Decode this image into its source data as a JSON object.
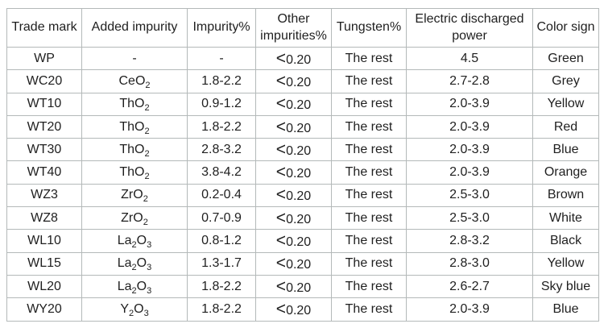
{
  "page": {
    "background_color": "#ffffff"
  },
  "table": {
    "border_color": "#b4b9b9",
    "text_color": "#1f1f1f",
    "headers": [
      "Trade mark",
      "Added impurity",
      "Impurity%",
      "Other impurities%",
      "Tungsten%",
      "Electric discharged power",
      "Color sign"
    ],
    "rows": [
      {
        "trade_mark": "WP",
        "added_impurity": "-",
        "impurity_pct": "-",
        "other_impurities_pct": "<0.20",
        "tungsten_pct": "The rest",
        "electric_discharged_power": "4.5",
        "color_sign": "Green"
      },
      {
        "trade_mark": "WC20",
        "added_impurity": "CeO2",
        "impurity_pct": "1.8-2.2",
        "other_impurities_pct": "<0.20",
        "tungsten_pct": "The rest",
        "electric_discharged_power": "2.7-2.8",
        "color_sign": "Grey"
      },
      {
        "trade_mark": "WT10",
        "added_impurity": "ThO2",
        "impurity_pct": "0.9-1.2",
        "other_impurities_pct": "<0.20",
        "tungsten_pct": "The rest",
        "electric_discharged_power": "2.0-3.9",
        "color_sign": "Yellow"
      },
      {
        "trade_mark": "WT20",
        "added_impurity": "ThO2",
        "impurity_pct": "1.8-2.2",
        "other_impurities_pct": "<0.20",
        "tungsten_pct": "The rest",
        "electric_discharged_power": "2.0-3.9",
        "color_sign": "Red"
      },
      {
        "trade_mark": "WT30",
        "added_impurity": "ThO2",
        "impurity_pct": "2.8-3.2",
        "other_impurities_pct": "<0.20",
        "tungsten_pct": "The rest",
        "electric_discharged_power": "2.0-3.9",
        "color_sign": "Blue"
      },
      {
        "trade_mark": "WT40",
        "added_impurity": "ThO2",
        "impurity_pct": "3.8-4.2",
        "other_impurities_pct": "<0.20",
        "tungsten_pct": "The rest",
        "electric_discharged_power": "2.0-3.9",
        "color_sign": "Orange"
      },
      {
        "trade_mark": "WZ3",
        "added_impurity": "ZrO2",
        "impurity_pct": "0.2-0.4",
        "other_impurities_pct": "<0.20",
        "tungsten_pct": "The rest",
        "electric_discharged_power": "2.5-3.0",
        "color_sign": "Brown"
      },
      {
        "trade_mark": "WZ8",
        "added_impurity": "ZrO2",
        "impurity_pct": "0.7-0.9",
        "other_impurities_pct": "<0.20",
        "tungsten_pct": "The rest",
        "electric_discharged_power": "2.5-3.0",
        "color_sign": "White"
      },
      {
        "trade_mark": "WL10",
        "added_impurity": "La2O3",
        "impurity_pct": "0.8-1.2",
        "other_impurities_pct": "<0.20",
        "tungsten_pct": "The rest",
        "electric_discharged_power": "2.8-3.2",
        "color_sign": "Black"
      },
      {
        "trade_mark": "WL15",
        "added_impurity": "La2O3",
        "impurity_pct": "1.3-1.7",
        "other_impurities_pct": "<0.20",
        "tungsten_pct": "The rest",
        "electric_discharged_power": "2.8-3.0",
        "color_sign": "Yellow"
      },
      {
        "trade_mark": "WL20",
        "added_impurity": "La2O3",
        "impurity_pct": "1.8-2.2",
        "other_impurities_pct": "<0.20",
        "tungsten_pct": "The rest",
        "electric_discharged_power": "2.6-2.7",
        "color_sign": "Sky blue"
      },
      {
        "trade_mark": "WY20",
        "added_impurity": "Y2O3",
        "impurity_pct": "1.8-2.2",
        "other_impurities_pct": "<0.20",
        "tungsten_pct": "The rest",
        "electric_discharged_power": "2.0-3.9",
        "color_sign": "Blue"
      }
    ]
  }
}
